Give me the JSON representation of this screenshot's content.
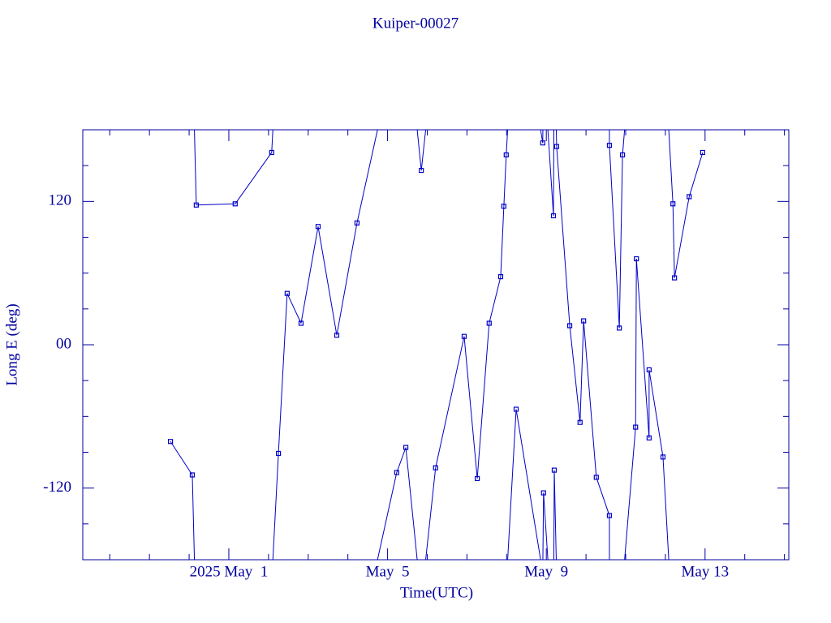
{
  "chart_data": {
    "type": "line",
    "title": "Kuiper-00027",
    "x_label": "Time(UTC)",
    "y_label": "Long E (deg)",
    "color": "#0000c8",
    "wrap": true,
    "xlim": [
      -2.68,
      15.11
    ],
    "ylim": [
      -180,
      180
    ],
    "xticks": [
      {
        "value": 1,
        "label": "2025 May  1"
      },
      {
        "value": 5,
        "label": "May  5"
      },
      {
        "value": 9,
        "label": "May  9"
      },
      {
        "value": 13,
        "label": "May 13"
      }
    ],
    "xminorticks": [
      -2,
      -1,
      0,
      2,
      3,
      4,
      6,
      7,
      8,
      10,
      11,
      12,
      14,
      15
    ],
    "yticks": [
      -120,
      {
        "value": 0,
        "label": "00"
      },
      120
    ],
    "yminorticks": [
      -150,
      -90,
      -60,
      -30,
      30,
      60,
      90,
      150
    ],
    "x": [
      -0.47,
      0.08,
      0.18,
      1.16,
      2.08,
      2.25,
      2.47,
      2.82,
      3.25,
      3.72,
      4.23,
      5.23,
      5.46,
      5.85,
      6.21,
      6.93,
      7.26,
      7.56,
      7.85,
      7.93,
      7.99,
      8.24,
      8.91,
      8.93,
      9.18,
      9.2,
      9.26,
      9.59,
      9.85,
      9.94,
      10.26,
      10.59,
      10.59,
      10.84,
      10.92,
      11.25,
      11.27,
      11.59,
      11.59,
      11.94,
      12.19,
      12.23,
      12.6,
      12.94
    ],
    "values": [
      -81,
      -109,
      117,
      118,
      161,
      -91,
      43,
      18,
      99,
      8,
      102,
      -107,
      -86,
      146,
      -103,
      7,
      -112,
      18,
      57,
      116,
      159,
      -54,
      169,
      -124,
      108,
      -105,
      166,
      16,
      -65,
      20,
      -111,
      -143,
      167,
      14,
      159,
      -69,
      72,
      -78,
      -21,
      -94,
      118,
      56,
      124,
      161
    ]
  }
}
